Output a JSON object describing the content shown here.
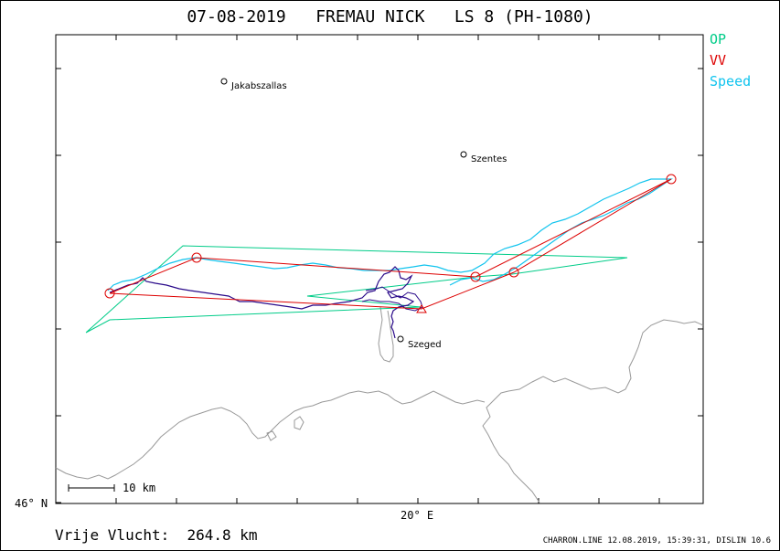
{
  "title": "07-08-2019   FREMAU NICK   LS 8 (PH-1080)",
  "legend": [
    {
      "label": "OP",
      "color": "#00cc88"
    },
    {
      "label": "VV",
      "color": "#dd0000"
    },
    {
      "label": "Speed",
      "color": "#11c4ee"
    }
  ],
  "cities": [
    {
      "name": "Jakabszallas"
    },
    {
      "name": "Szentes"
    },
    {
      "name": "Szeged"
    }
  ],
  "scale_label": "10  km",
  "axis": {
    "lat_label": "46° N",
    "lon_label": "20° E"
  },
  "footer": {
    "distance": "Vrije Vlucht:  264.8 km",
    "credit": "CHARRON.LINE 12.08.2019, 15:39:31, DISLIN 10.6"
  },
  "colors": {
    "op": "#00cc88",
    "vv": "#dd0000",
    "speed": "#11c4ee",
    "track": "#2a0a8a",
    "border": "#999999"
  }
}
